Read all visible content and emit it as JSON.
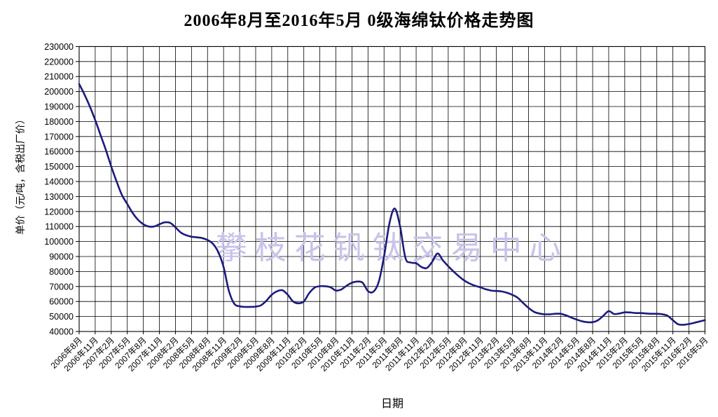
{
  "title": "2006年8月至2016年5月 0级海绵钛价格走势图",
  "watermark": "攀枝花钒钛交易中心",
  "chart_data": {
    "type": "line",
    "title": "2006年8月至2016年5月 0级海绵钛价格走势图",
    "xlabel": "日期",
    "ylabel": "单价（元/吨，含税出厂价）",
    "ylim": [
      40000,
      230000
    ],
    "ytick_step": 10000,
    "grid": true,
    "legend": "none",
    "x_start": "2006年8月",
    "x_end": "2016年5月",
    "x_interval": "monthly",
    "xtick_every_months": 3,
    "xtick_labels": [
      "2006年8月",
      "2006年11月",
      "2007年2月",
      "2007年5月",
      "2007年8月",
      "2007年11月",
      "2008年2月",
      "2008年5月",
      "2008年8月",
      "2008年11月",
      "2009年2月",
      "2009年5月",
      "2009年8月",
      "2009年11月",
      "2010年2月",
      "2010年5月",
      "2010年8月",
      "2010年11月",
      "2011年2月",
      "2011年5月",
      "2011年8月",
      "2011年11月",
      "2012年2月",
      "2012年5月",
      "2012年8月",
      "2012年11月",
      "2013年2月",
      "2013年5月",
      "2013年8月",
      "2013年11月",
      "2014年2月",
      "2014年5月",
      "2014年8月",
      "2014年11月",
      "2015年2月",
      "2015年5月",
      "2015年8月",
      "2015年11月",
      "2016年2月",
      "2016年5月"
    ],
    "series": [
      {
        "name": "0级海绵钛价格",
        "monthly_values": [
          205000,
          198000,
          190000,
          181000,
          171000,
          161000,
          150000,
          140000,
          131000,
          125000,
          119000,
          114500,
          111500,
          110000,
          110000,
          111500,
          112800,
          112500,
          109500,
          106000,
          104200,
          103200,
          102800,
          102300,
          101000,
          98500,
          93000,
          83000,
          67000,
          58500,
          56800,
          56400,
          56400,
          56600,
          57500,
          60500,
          64500,
          66800,
          67500,
          64500,
          60000,
          58800,
          60000,
          65500,
          69200,
          70200,
          70200,
          69500,
          67300,
          68000,
          70500,
          72500,
          73300,
          72500,
          67000,
          66500,
          73000,
          90000,
          112000,
          122000,
          110000,
          89000,
          86000,
          85500,
          83000,
          82300,
          86500,
          92000,
          87500,
          83500,
          80000,
          76800,
          74000,
          72000,
          70500,
          69500,
          68200,
          67300,
          67000,
          66700,
          65800,
          64400,
          62500,
          59000,
          55800,
          53200,
          52000,
          51500,
          51500,
          51800,
          51800,
          50800,
          49300,
          48000,
          46800,
          46200,
          46200,
          47500,
          50500,
          53600,
          51700,
          52000,
          52800,
          52700,
          52300,
          52300,
          52000,
          51800,
          51800,
          51500,
          50500,
          47500,
          44800,
          44500,
          45000,
          45800,
          46700,
          47600
        ]
      }
    ],
    "colors": {
      "line": "#1b1b7e",
      "grid": "#000000",
      "watermark": "#c8c3ea",
      "text": "#000000",
      "background": "#ffffff"
    }
  }
}
